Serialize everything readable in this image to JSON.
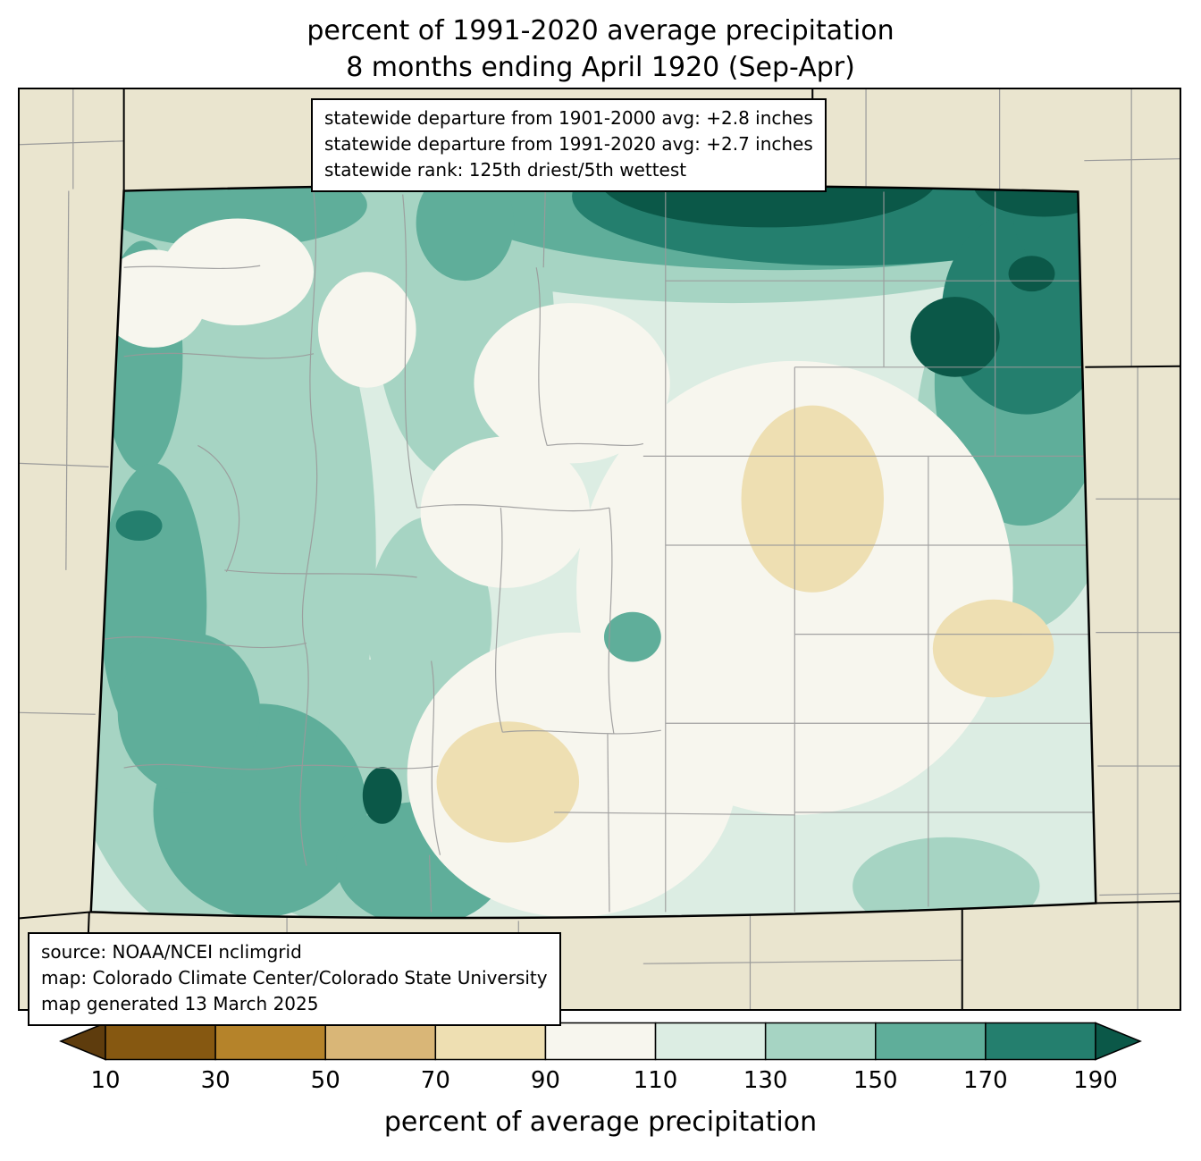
{
  "title": {
    "line1": "percent of 1991-2020 average precipitation",
    "line2": "8 months ending April 1920 (Sep-Apr)"
  },
  "info_box": {
    "lines": [
      "statewide departure from 1901-2000 avg: +2.8 inches",
      "statewide departure from 1991-2020 avg: +2.7 inches",
      "statewide rank: 125th driest/5th wettest"
    ]
  },
  "source_box": {
    "lines": [
      "source: NOAA/NCEI nclimgrid",
      "map: Colorado Climate Center/Colorado State University",
      "map generated 13 March 2025"
    ]
  },
  "chart_data": {
    "type": "heatmap",
    "subtype": "filled contour choropleth map of Colorado precipitation percent of average",
    "region": "Colorado with surrounding states shown in beige",
    "colorbar": {
      "label": "percent of average precipitation",
      "ticks": [
        "10",
        "30",
        "50",
        "70",
        "90",
        "110",
        "130",
        "150",
        "170",
        "190"
      ],
      "bin_edges": [
        10,
        30,
        50,
        70,
        90,
        110,
        130,
        150,
        170,
        190
      ],
      "colors": [
        "#5e3c0d",
        "#865811",
        "#b5832a",
        "#d9b677",
        "#eedfb2",
        "#f7f6ee",
        "#dcede3",
        "#a6d4c3",
        "#5fae9a",
        "#247f6e",
        "#0b5848"
      ],
      "under_label": "<10",
      "over_label": ">190"
    },
    "notable_features": [
      "dark teal band (>170%) along the northern border and northeast corner with >190% pockets",
      "teal bands (130-170%) across western and southwestern Colorado",
      "tan pockets (70-90%) in east-central, eastern and south-central Colorado",
      "near-normal (90-110%) areas through central and eastern Colorado",
      "small dark teal pockets on the west edge and in the southwest"
    ]
  },
  "palette": {
    "figure_bg": "#ffffff",
    "map_bg": "#eae5cf",
    "state_line": "#000000",
    "county_line": "#9a9a9a",
    "p70": "#eedfb2",
    "p90": "#f7f6ee",
    "p110": "#dcede3",
    "p130": "#a6d4c3",
    "p150": "#5fae9a",
    "p170": "#247f6e",
    "p190": "#0b5848"
  }
}
